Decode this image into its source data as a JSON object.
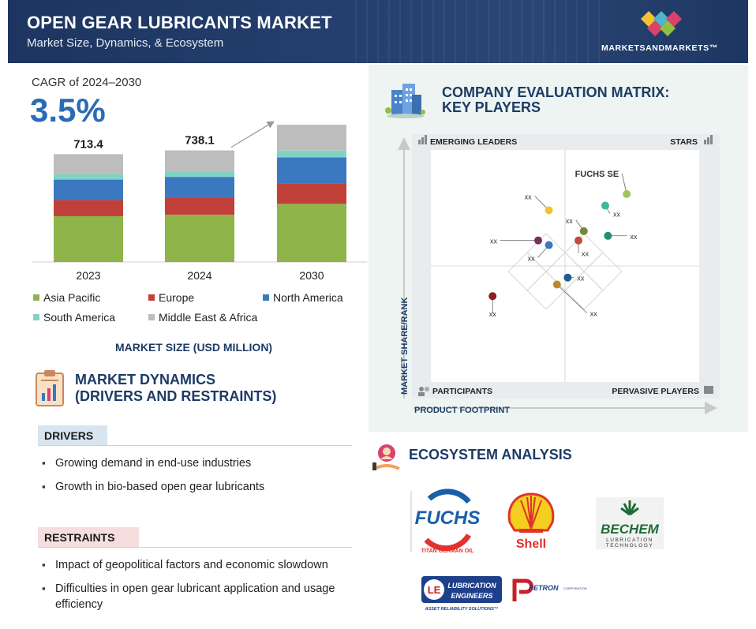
{
  "header": {
    "title": "OPEN GEAR LUBRICANTS MARKET",
    "subtitle": "Market Size, Dynamics, & Ecosystem",
    "brand": "MARKETSANDMARKETS™"
  },
  "cagr": {
    "label": "CAGR of 2024–2030",
    "value": "3.5%"
  },
  "chart_data": {
    "type": "bar",
    "stacked": true,
    "categories": [
      "2023",
      "2024",
      "2030"
    ],
    "totals": [
      "713.4",
      "738.1",
      "907.9"
    ],
    "series": [
      {
        "name": "Asia Pacific",
        "color": "#8fb44a",
        "values": [
          303,
          313,
          385
        ]
      },
      {
        "name": "Europe",
        "color": "#c2403a",
        "values": [
          107,
          110,
          135
        ]
      },
      {
        "name": "North America",
        "color": "#3b78c0",
        "values": [
          135,
          140,
          172
        ]
      },
      {
        "name": "South America",
        "color": "#7fd3c5",
        "values": [
          36,
          37,
          45
        ]
      },
      {
        "name": "Middle East & Africa",
        "color": "#bdbdbd",
        "values": [
          132.4,
          138.1,
          170.9
        ]
      }
    ],
    "ylim": [
      0,
      950
    ],
    "xlabel": "MARKET SIZE (USD MILLION)",
    "legend": "bottom"
  },
  "dynamics": {
    "title_line1": "MARKET DYNAMICS",
    "title_line2": "(DRIVERS AND RESTRAINTS)",
    "drivers_label": "DRIVERS",
    "drivers": [
      "Growing demand in end-use industries",
      "Growth in bio-based open gear lubricants"
    ],
    "restraints_label": "RESTRAINTS",
    "restraints": [
      "Impact of geopolitical factors and economic slowdown",
      "Difficulties in open gear lubricant application and usage efficiency"
    ]
  },
  "matrix": {
    "title_line1": "COMPANY EVALUATION MATRIX:",
    "title_line2": "KEY PLAYERS",
    "quadrants": {
      "top_left": "EMERGING LEADERS",
      "top_right": "STARS",
      "bottom_left": "PARTICIPANTS",
      "bottom_right": "PERVASIVE PLAYERS"
    },
    "x_axis": "PRODUCT FOOTPRINT",
    "y_axis": "MARKET SHARE/RANK",
    "players": [
      {
        "label": "FUCHS SE",
        "color": "#a5c25a",
        "x": 0.73,
        "y": 0.81
      },
      {
        "label": "XX",
        "color": "#3fb79b",
        "x": 0.65,
        "y": 0.76
      },
      {
        "label": "XX",
        "color": "#f2c230",
        "x": 0.44,
        "y": 0.74
      },
      {
        "label": "XX",
        "color": "#76873a",
        "x": 0.57,
        "y": 0.65
      },
      {
        "label": "XX",
        "color": "#1f8f78",
        "x": 0.66,
        "y": 0.63
      },
      {
        "label": "XX",
        "color": "#c24a3f",
        "x": 0.55,
        "y": 0.61
      },
      {
        "label": "XX",
        "color": "#7a2e5e",
        "x": 0.4,
        "y": 0.61
      },
      {
        "label": "XX",
        "color": "#3b78c0",
        "x": 0.44,
        "y": 0.59
      },
      {
        "label": "XX",
        "color": "#1f5d8a",
        "x": 0.51,
        "y": 0.45
      },
      {
        "label": "XX",
        "color": "#b98a2a",
        "x": 0.47,
        "y": 0.42
      },
      {
        "label": "XX",
        "color": "#8c1f22",
        "x": 0.23,
        "y": 0.37
      }
    ]
  },
  "ecosystem": {
    "title": "ECOSYSTEM ANALYSIS",
    "logos": [
      {
        "name": "FUCHS",
        "sub": "TITAN GERMAN OIL"
      },
      {
        "name": "Shell"
      },
      {
        "name": "BECHEM",
        "sub1": "LUBRICATION",
        "sub2": "TECHNOLOGY"
      },
      {
        "name": "LE",
        "line1": "LUBRICATION",
        "line2": "ENGINEERS",
        "sub": "ASSET RELIABILITY SOLUTIONS™"
      },
      {
        "name": "PETRON",
        "sub": "CORPORATION"
      }
    ]
  }
}
